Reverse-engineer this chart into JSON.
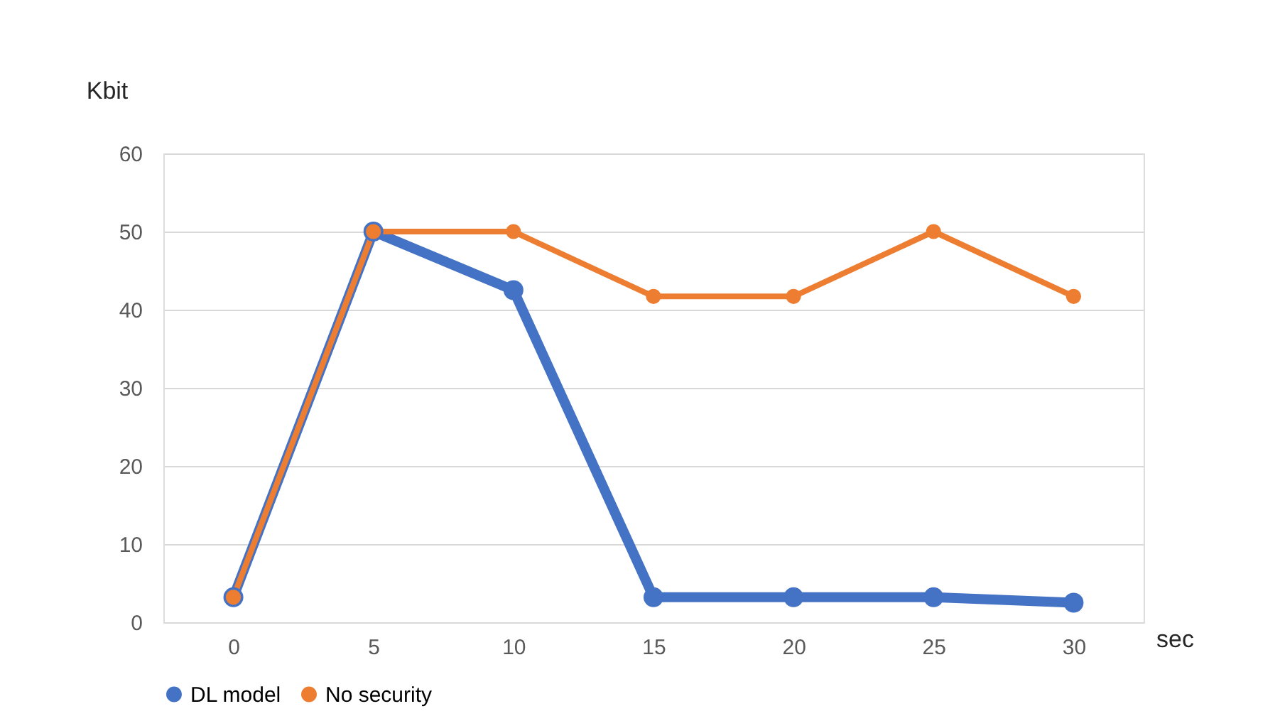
{
  "chart_data": {
    "type": "line",
    "xlabel": "sec",
    "ylabel": "Kbit",
    "categories": [
      "0",
      "5",
      "10",
      "15",
      "20",
      "25",
      "30"
    ],
    "series": [
      {
        "name": "DL model",
        "color": "#4472c4",
        "values": [
          3.2,
          50,
          42.5,
          3.2,
          3.2,
          3.2,
          2.5
        ]
      },
      {
        "name": "No security",
        "color": "#ed7d31",
        "values": [
          3.2,
          50,
          50,
          41.7,
          41.7,
          50,
          41.7
        ]
      }
    ],
    "ylim": [
      0,
      60
    ],
    "yticks": [
      0,
      10,
      20,
      30,
      40,
      50,
      60
    ],
    "grid": "y",
    "legend": "bottom",
    "marker": "circle",
    "line_style": "solid"
  }
}
